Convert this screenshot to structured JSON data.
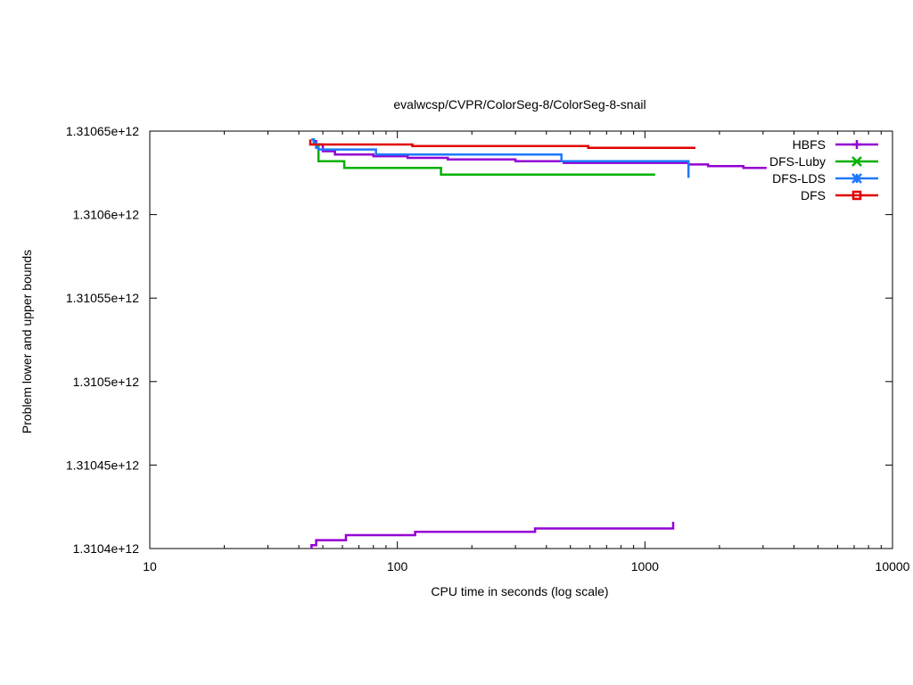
{
  "chart_data": {
    "type": "line",
    "title": "evalwcsp/CVPR/ColorSeg-8/ColorSeg-8-snail",
    "xlabel": "CPU time in seconds (log scale)",
    "ylabel": "Problem lower and upper bounds",
    "x_scale": "log",
    "xlim": [
      10,
      10000
    ],
    "ylim": [
      1310400000000,
      1310650000000
    ],
    "x_ticks": [
      10,
      100,
      1000,
      10000
    ],
    "x_tick_labels": [
      "10",
      "100",
      "1000",
      "10000"
    ],
    "y_ticks": [
      1310400000000,
      1310450000000,
      1310500000000,
      1310550000000,
      1310600000000,
      1310650000000
    ],
    "y_tick_labels": [
      "1.3104e+12",
      "1.31045e+12",
      "1.3105e+12",
      "1.31055e+12",
      "1.3106e+12",
      "1.31065e+12"
    ],
    "grid": false,
    "legend_position": "top-right",
    "series": [
      {
        "name": "HBFS",
        "color": "#9400d3",
        "marker": "plus",
        "segments": [
          [
            [
              45,
              1310645000000
            ],
            [
              46,
              1310644000000
            ],
            [
              47,
              1310642000000
            ],
            [
              50,
              1310638000000
            ],
            [
              56,
              1310636000000
            ],
            [
              80,
              1310635000000
            ],
            [
              110,
              1310634000000
            ],
            [
              160,
              1310633000000
            ],
            [
              300,
              1310632000000
            ],
            [
              470,
              1310631000000
            ],
            [
              1000,
              1310631000000
            ],
            [
              1500,
              1310630000000
            ],
            [
              1800,
              1310629000000
            ],
            [
              2500,
              1310628000000
            ],
            [
              3100,
              1310628000000
            ]
          ],
          [
            [
              45,
              1310400000000
            ],
            [
              45,
              1310402000000
            ],
            [
              47,
              1310405000000
            ],
            [
              62,
              1310408000000
            ],
            [
              118,
              1310410000000
            ],
            [
              360,
              1310412000000
            ],
            [
              1300,
              1310414000000
            ],
            [
              1300,
              1310416000000
            ]
          ]
        ]
      },
      {
        "name": "DFS-Luby",
        "color": "#00b000",
        "marker": "x",
        "segments": [
          [
            [
              45,
              1310645000000
            ],
            [
              46,
              1310642000000
            ],
            [
              48,
              1310640000000
            ],
            [
              48,
              1310632000000
            ],
            [
              61,
              1310628000000
            ],
            [
              150,
              1310624000000
            ],
            [
              1100,
              1310624000000
            ]
          ]
        ]
      },
      {
        "name": "DFS-LDS",
        "color": "#1e78ff",
        "marker": "star",
        "segments": [
          [
            [
              45,
              1310645000000
            ],
            [
              46,
              1310643000000
            ],
            [
              47,
              1310640000000
            ],
            [
              48,
              1310639000000
            ],
            [
              82,
              1310636000000
            ],
            [
              460,
              1310632000000
            ],
            [
              1500,
              1310632000000
            ],
            [
              1500,
              1310622000000
            ]
          ]
        ]
      },
      {
        "name": "DFS",
        "color": "#e00000",
        "marker": "square",
        "segments": [
          [
            [
              44.5,
              1310645000000
            ],
            [
              44.5,
              1310642000000
            ],
            [
              115,
              1310641000000
            ],
            [
              590,
              1310640000000
            ],
            [
              1600,
              1310640000000
            ]
          ]
        ]
      }
    ]
  }
}
